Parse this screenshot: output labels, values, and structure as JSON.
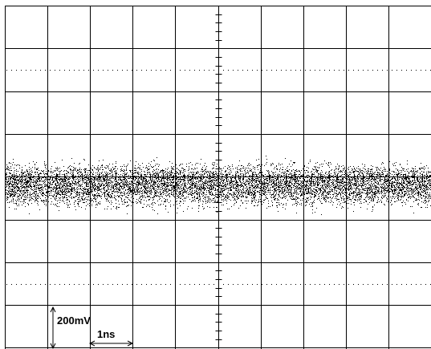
{
  "labels": {
    "vertical_scale": "200mV",
    "horizontal_scale": "1ns"
  }
}
